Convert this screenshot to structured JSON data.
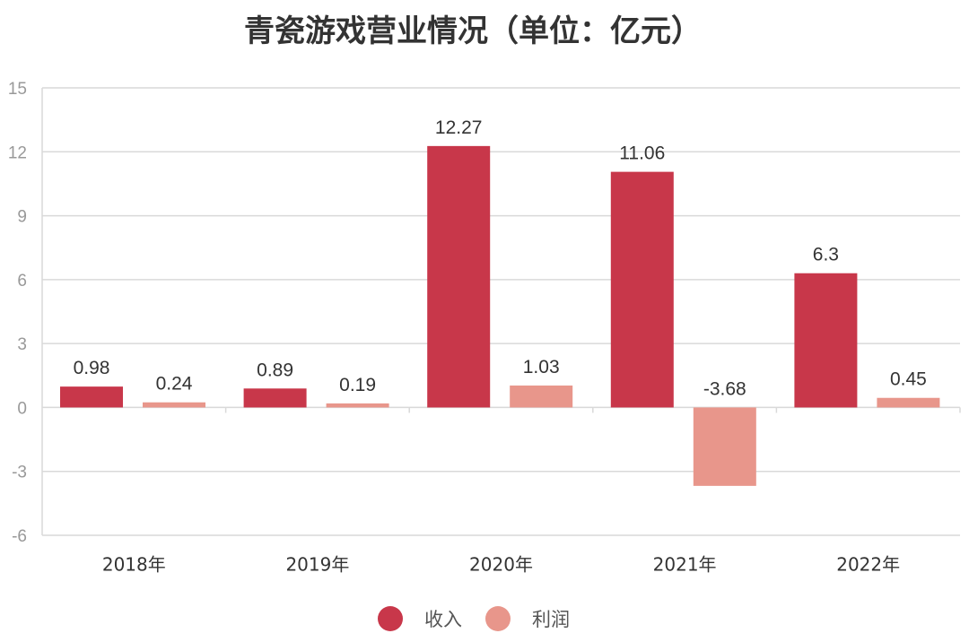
{
  "chart_data": {
    "type": "bar",
    "title": "青瓷游戏营业情况（单位：亿元）",
    "categories": [
      "2018年",
      "2019年",
      "2020年",
      "2021年",
      "2022年"
    ],
    "series": [
      {
        "name": "收入",
        "values": [
          0.98,
          0.89,
          12.27,
          11.06,
          6.3
        ],
        "color": "#C8374A"
      },
      {
        "name": "利润",
        "values": [
          0.24,
          0.19,
          1.03,
          -3.68,
          0.45
        ],
        "color": "#E8968B"
      }
    ],
    "ylim": [
      -6,
      15
    ],
    "yticks": [
      15,
      12,
      9,
      6,
      3,
      0,
      -3,
      -6
    ],
    "grid": true,
    "legend": "bottom"
  }
}
